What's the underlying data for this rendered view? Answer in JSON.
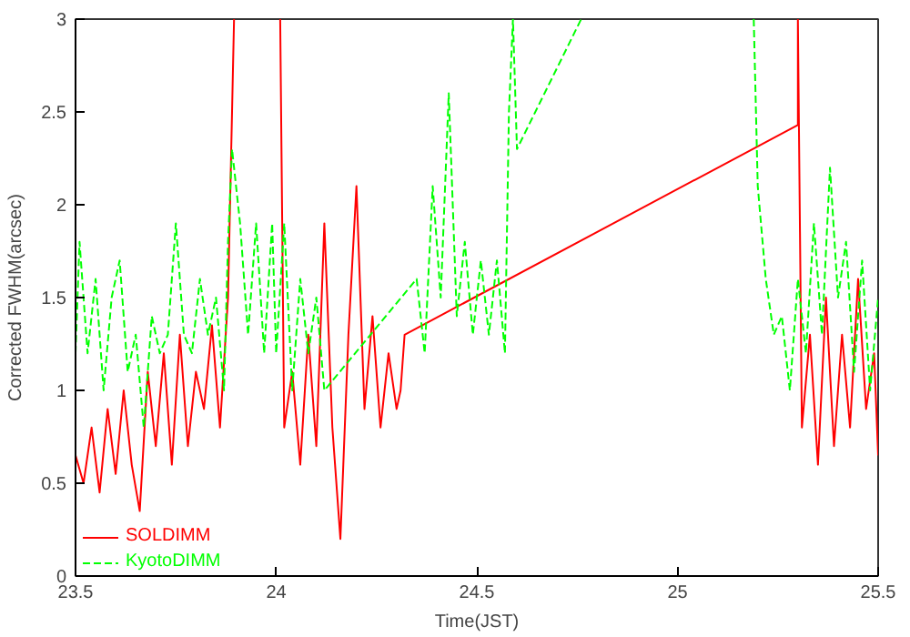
{
  "chart_data": {
    "type": "line",
    "xlabel": "Time(JST)",
    "ylabel": "Corrected FWHM(arcsec)",
    "xlim": [
      23.5,
      25.5
    ],
    "ylim": [
      0,
      3
    ],
    "xticks": [
      23.5,
      24,
      24.5,
      25,
      25.5
    ],
    "yticks": [
      0,
      0.5,
      1,
      1.5,
      2,
      2.5,
      3
    ],
    "grid": false,
    "legend": "bottom left",
    "marker": "none",
    "series": [
      {
        "name": "SOLDIMM",
        "color": "#ff0000",
        "line_style": "solid",
        "x": [
          23.5,
          23.52,
          23.54,
          23.56,
          23.58,
          23.6,
          23.62,
          23.64,
          23.66,
          23.68,
          23.7,
          23.72,
          23.74,
          23.76,
          23.78,
          23.8,
          23.82,
          23.84,
          23.86,
          23.88,
          23.89,
          23.895,
          23.9,
          24.01,
          24.02,
          24.04,
          24.06,
          24.08,
          24.1,
          24.12,
          24.14,
          24.16,
          24.18,
          24.2,
          24.22,
          24.24,
          24.26,
          24.28,
          24.3,
          24.31,
          24.32,
          25.3,
          25.3,
          25.31,
          25.33,
          25.35,
          25.37,
          25.39,
          25.41,
          25.43,
          25.45,
          25.47,
          25.49,
          25.5
        ],
        "values": [
          0.65,
          0.5,
          0.8,
          0.45,
          0.9,
          0.55,
          1.0,
          0.6,
          0.35,
          1.1,
          0.7,
          1.2,
          0.6,
          1.3,
          0.7,
          1.1,
          0.9,
          1.35,
          0.8,
          1.5,
          2.5,
          3.0,
          null,
          3.0,
          0.8,
          1.1,
          0.6,
          1.3,
          0.7,
          1.9,
          0.8,
          0.2,
          1.3,
          2.1,
          0.9,
          1.4,
          0.8,
          1.2,
          0.9,
          1.0,
          1.3,
          2.43,
          3.0,
          0.8,
          1.3,
          0.6,
          1.5,
          0.7,
          1.3,
          0.8,
          1.6,
          0.9,
          1.2,
          0.65
        ]
      },
      {
        "name": "KyotoDIMM",
        "color": "#00ff00",
        "line_style": "dashed",
        "x": [
          23.5,
          23.51,
          23.53,
          23.55,
          23.57,
          23.59,
          23.61,
          23.63,
          23.65,
          23.67,
          23.69,
          23.71,
          23.73,
          23.75,
          23.77,
          23.79,
          23.81,
          23.83,
          23.85,
          23.87,
          23.88,
          23.89,
          23.91,
          23.93,
          23.95,
          23.97,
          23.99,
          24.0,
          24.02,
          24.04,
          24.06,
          24.08,
          24.1,
          24.12,
          24.35,
          24.37,
          24.39,
          24.41,
          24.43,
          24.45,
          24.47,
          24.49,
          24.51,
          24.53,
          24.55,
          24.57,
          24.58,
          24.59,
          24.6,
          24.76,
          24.9,
          25.19,
          25.2,
          25.22,
          25.24,
          25.26,
          25.28,
          25.3,
          25.32,
          25.34,
          25.36,
          25.38,
          25.4,
          25.42,
          25.44,
          25.46,
          25.48,
          25.5
        ],
        "values": [
          1.2,
          1.8,
          1.2,
          1.6,
          1.0,
          1.5,
          1.7,
          1.1,
          1.3,
          0.8,
          1.4,
          1.2,
          1.3,
          1.9,
          1.3,
          1.2,
          1.6,
          1.3,
          1.5,
          1.0,
          1.8,
          2.3,
          1.9,
          1.3,
          1.9,
          1.2,
          1.9,
          1.2,
          1.9,
          1.0,
          1.6,
          1.2,
          1.5,
          1.0,
          1.6,
          1.2,
          2.1,
          1.5,
          2.6,
          1.4,
          1.8,
          1.3,
          1.7,
          1.3,
          1.7,
          1.2,
          2.5,
          3.0,
          2.3,
          3.0,
          null,
          3.0,
          2.1,
          1.6,
          1.3,
          1.4,
          1.0,
          1.6,
          1.2,
          1.9,
          1.3,
          2.2,
          1.5,
          1.8,
          1.1,
          1.7,
          1.0,
          1.5
        ]
      }
    ]
  }
}
